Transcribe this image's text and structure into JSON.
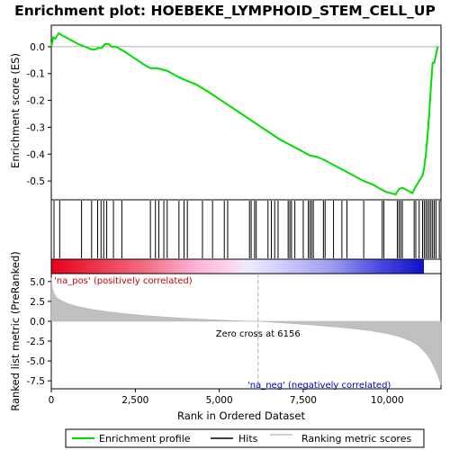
{
  "chart_data": {
    "type": "line",
    "title": "Enrichment plot: HOEBEKE_LYMPHOID_STEM_CELL_UP",
    "xlabel": "Rank in Ordered Dataset",
    "ylabel_top": "Enrichment score (ES)",
    "ylabel_bottom": "Ranked list metric (PreRanked)",
    "xlim": [
      0,
      11600
    ],
    "x_ticks": [
      0,
      2500,
      5000,
      7500,
      10000
    ],
    "x_tick_labels": [
      "0",
      "2,500",
      "5,000",
      "7,500",
      "10,000"
    ],
    "es_ylim": [
      -0.57,
      0.08
    ],
    "es_y_ticks": [
      0.0,
      -0.1,
      -0.2,
      -0.3,
      -0.4,
      -0.5
    ],
    "es_y_tick_labels": [
      "0.0",
      "-0.1",
      "-0.2",
      "-0.3",
      "-0.4",
      "-0.5"
    ],
    "metric_ylim": [
      -8.5,
      6.0
    ],
    "metric_y_ticks": [
      5.0,
      2.5,
      0.0,
      -2.5,
      -5.0,
      -7.5
    ],
    "metric_y_tick_labels": [
      "5.0",
      "2.5",
      "0.0",
      "-2.5",
      "-5.0",
      "-7.5"
    ],
    "enrichment_profile": {
      "x": [
        0,
        60,
        120,
        220,
        350,
        500,
        650,
        800,
        900,
        1000,
        1100,
        1200,
        1300,
        1400,
        1500,
        1600,
        1700,
        1800,
        1900,
        2000,
        2200,
        2500,
        2800,
        2950,
        3050,
        3150,
        3300,
        3450,
        3600,
        3750,
        3900,
        4100,
        4300,
        4500,
        4700,
        5000,
        5300,
        5600,
        5900,
        6200,
        6500,
        6800,
        7100,
        7400,
        7700,
        7900,
        8100,
        8400,
        8700,
        9000,
        9300,
        9600,
        9800,
        9950,
        10100,
        10250,
        10350,
        10450,
        10600,
        10750,
        10850,
        10950,
        11050,
        11100,
        11150,
        11200,
        11250,
        11300,
        11350,
        11400,
        11500
      ],
      "y": [
        0.0,
        0.035,
        0.03,
        0.05,
        0.04,
        0.03,
        0.02,
        0.01,
        0.005,
        0.0,
        -0.005,
        -0.01,
        -0.01,
        -0.005,
        -0.005,
        0.01,
        0.01,
        0.0,
        0.0,
        -0.005,
        -0.02,
        -0.045,
        -0.07,
        -0.08,
        -0.08,
        -0.08,
        -0.085,
        -0.09,
        -0.1,
        -0.11,
        -0.12,
        -0.13,
        -0.14,
        -0.155,
        -0.17,
        -0.195,
        -0.22,
        -0.245,
        -0.27,
        -0.295,
        -0.32,
        -0.345,
        -0.365,
        -0.385,
        -0.405,
        -0.41,
        -0.42,
        -0.44,
        -0.46,
        -0.48,
        -0.5,
        -0.515,
        -0.53,
        -0.54,
        -0.545,
        -0.55,
        -0.53,
        -0.525,
        -0.535,
        -0.545,
        -0.52,
        -0.5,
        -0.48,
        -0.45,
        -0.4,
        -0.33,
        -0.25,
        -0.15,
        -0.06,
        -0.06,
        0.0
      ]
    },
    "hits_x": [
      80,
      250,
      900,
      1200,
      1380,
      1480,
      1560,
      1650,
      1850,
      2100,
      2950,
      3100,
      3200,
      3350,
      3450,
      3800,
      3950,
      4050,
      4500,
      4800,
      5150,
      5250,
      5900,
      5950,
      6050,
      6100,
      6450,
      6550,
      6650,
      6750,
      7050,
      7100,
      7150,
      7250,
      7500,
      7650,
      7700,
      7750,
      7800,
      8100,
      8150,
      8400,
      8650,
      8800,
      9300,
      9850,
      9900,
      10300,
      10350,
      10400,
      10450,
      10800,
      10850,
      10950,
      11050,
      11100,
      11150,
      11200,
      11250,
      11300,
      11350,
      11400,
      11450,
      11550
    ],
    "metric_curve": {
      "x": [
        0,
        30,
        80,
        150,
        300,
        500,
        800,
        1200,
        1700,
        2200,
        2800,
        3500,
        4200,
        5000,
        5800,
        6156,
        6500,
        7200,
        8000,
        8800,
        9500,
        10000,
        10400,
        10700,
        10900,
        11050,
        11200,
        11300,
        11400,
        11500,
        11600
      ],
      "y": [
        5.5,
        4.2,
        3.5,
        3.0,
        2.6,
        2.2,
        1.85,
        1.5,
        1.2,
        0.95,
        0.72,
        0.5,
        0.32,
        0.15,
        0.03,
        0.0,
        -0.1,
        -0.3,
        -0.55,
        -0.85,
        -1.2,
        -1.55,
        -2.0,
        -2.5,
        -3.0,
        -3.6,
        -4.3,
        -5.0,
        -5.8,
        -6.8,
        -8.0
      ]
    },
    "zero_cross_rank": 6156,
    "zero_cross_label": "Zero cross at 6156",
    "na_pos_label": "'na_pos' (positively correlated)",
    "na_neg_label": "'na_neg' (negatively correlated)",
    "legend": {
      "items": [
        {
          "name": "Enrichment profile",
          "color": "#00cc00"
        },
        {
          "name": "Hits",
          "color": "#000000"
        },
        {
          "name": "Ranking metric scores",
          "color": "#c0c0c0"
        }
      ],
      "placement": "bottom"
    },
    "colors": {
      "profile": "#00dd00",
      "hits": "#000000",
      "metric": "#c0c0c0",
      "na_pos": "#e00000",
      "na_neg": "#0000dd",
      "zero_line": "#aaaaaa"
    }
  }
}
